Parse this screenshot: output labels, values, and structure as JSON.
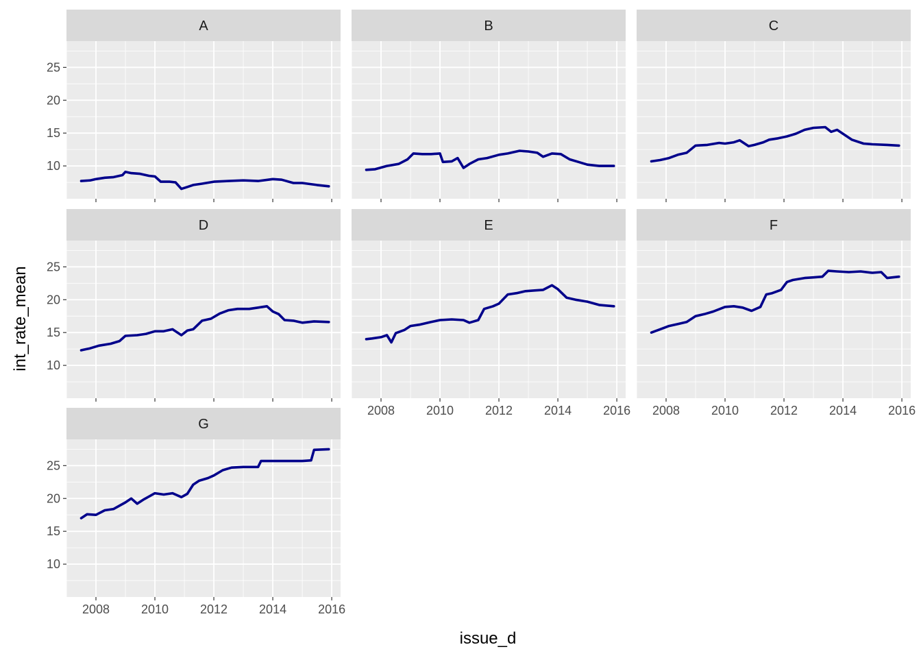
{
  "chart_data": {
    "type": "line",
    "facet_by": "grade",
    "xlabel": "issue_d",
    "ylabel": "int_rate_mean",
    "xlim": [
      2007.0,
      2016.3
    ],
    "ylim": [
      5,
      29
    ],
    "x_ticks": [
      2008,
      2010,
      2012,
      2014,
      2016
    ],
    "x_tick_labels": [
      "2008",
      "2010",
      "2012",
      "2014",
      "2016"
    ],
    "y_ticks": [
      10,
      15,
      20,
      25
    ],
    "y_tick_labels": [
      "10",
      "15",
      "20",
      "25"
    ],
    "grid": true,
    "line_color": "#00008B",
    "panel_background": "#EBEBEB",
    "strip_background": "#D9D9D9",
    "panels": [
      {
        "name": "A",
        "x": [
          2007.5,
          2007.8,
          2008.0,
          2008.3,
          2008.6,
          2008.9,
          2009.0,
          2009.2,
          2009.5,
          2009.8,
          2010.0,
          2010.2,
          2010.5,
          2010.7,
          2010.9,
          2011.1,
          2011.3,
          2011.6,
          2012.0,
          2012.5,
          2013.0,
          2013.5,
          2014.0,
          2014.3,
          2014.7,
          2015.0,
          2015.5,
          2015.9
        ],
        "y": [
          7.7,
          7.8,
          8.0,
          8.2,
          8.3,
          8.6,
          9.1,
          8.9,
          8.8,
          8.5,
          8.4,
          7.6,
          7.6,
          7.5,
          6.5,
          6.8,
          7.1,
          7.3,
          7.6,
          7.7,
          7.8,
          7.7,
          8.0,
          7.9,
          7.4,
          7.4,
          7.1,
          6.9
        ]
      },
      {
        "name": "B",
        "x": [
          2007.5,
          2007.8,
          2008.2,
          2008.6,
          2008.9,
          2009.1,
          2009.4,
          2009.7,
          2010.0,
          2010.1,
          2010.4,
          2010.6,
          2010.8,
          2011.0,
          2011.3,
          2011.6,
          2012.0,
          2012.3,
          2012.7,
          2013.0,
          2013.3,
          2013.5,
          2013.8,
          2014.1,
          2014.4,
          2014.7,
          2015.0,
          2015.4,
          2015.9
        ],
        "y": [
          9.4,
          9.5,
          10.0,
          10.3,
          11.0,
          11.9,
          11.8,
          11.8,
          11.9,
          10.6,
          10.7,
          11.2,
          9.7,
          10.3,
          11.0,
          11.2,
          11.7,
          11.9,
          12.3,
          12.2,
          12.0,
          11.4,
          11.9,
          11.8,
          11.0,
          10.6,
          10.2,
          10.0,
          10.0
        ]
      },
      {
        "name": "C",
        "x": [
          2007.5,
          2007.8,
          2008.1,
          2008.4,
          2008.7,
          2009.0,
          2009.4,
          2009.8,
          2010.0,
          2010.3,
          2010.5,
          2010.8,
          2011.0,
          2011.3,
          2011.5,
          2011.8,
          2012.1,
          2012.4,
          2012.7,
          2013.0,
          2013.4,
          2013.6,
          2013.8,
          2014.0,
          2014.3,
          2014.7,
          2015.0,
          2015.5,
          2015.9
        ],
        "y": [
          10.7,
          10.9,
          11.2,
          11.7,
          12.0,
          13.1,
          13.2,
          13.5,
          13.4,
          13.6,
          13.9,
          13.0,
          13.2,
          13.6,
          14.0,
          14.2,
          14.5,
          14.9,
          15.5,
          15.8,
          15.9,
          15.2,
          15.5,
          14.9,
          14.0,
          13.4,
          13.3,
          13.2,
          13.1
        ]
      },
      {
        "name": "D",
        "x": [
          2007.5,
          2007.8,
          2008.1,
          2008.5,
          2008.8,
          2009.0,
          2009.4,
          2009.7,
          2010.0,
          2010.3,
          2010.6,
          2010.9,
          2011.1,
          2011.3,
          2011.6,
          2011.9,
          2012.2,
          2012.5,
          2012.8,
          2013.2,
          2013.5,
          2013.8,
          2014.0,
          2014.2,
          2014.4,
          2014.7,
          2015.0,
          2015.4,
          2015.9
        ],
        "y": [
          12.3,
          12.6,
          13.0,
          13.3,
          13.7,
          14.5,
          14.6,
          14.8,
          15.2,
          15.2,
          15.5,
          14.6,
          15.3,
          15.5,
          16.8,
          17.1,
          17.9,
          18.4,
          18.6,
          18.6,
          18.8,
          19.0,
          18.2,
          17.8,
          16.9,
          16.8,
          16.5,
          16.7,
          16.6
        ]
      },
      {
        "name": "E",
        "x": [
          2007.5,
          2007.7,
          2008.0,
          2008.2,
          2008.35,
          2008.5,
          2008.8,
          2009.0,
          2009.3,
          2009.7,
          2010.0,
          2010.4,
          2010.8,
          2011.0,
          2011.3,
          2011.5,
          2011.8,
          2012.0,
          2012.3,
          2012.6,
          2012.9,
          2013.2,
          2013.5,
          2013.8,
          2014.0,
          2014.3,
          2014.6,
          2015.0,
          2015.4,
          2015.9
        ],
        "y": [
          14.0,
          14.1,
          14.3,
          14.6,
          13.5,
          14.9,
          15.4,
          16.0,
          16.2,
          16.6,
          16.9,
          17.0,
          16.9,
          16.5,
          16.9,
          18.6,
          19.0,
          19.4,
          20.8,
          21.0,
          21.3,
          21.4,
          21.5,
          22.2,
          21.6,
          20.3,
          20.0,
          19.7,
          19.2,
          19.0
        ]
      },
      {
        "name": "F",
        "x": [
          2007.5,
          2007.8,
          2008.1,
          2008.4,
          2008.7,
          2009.0,
          2009.3,
          2009.6,
          2010.0,
          2010.3,
          2010.6,
          2010.9,
          2011.2,
          2011.4,
          2011.6,
          2011.9,
          2012.1,
          2012.3,
          2012.7,
          2013.0,
          2013.3,
          2013.5,
          2013.8,
          2014.2,
          2014.6,
          2015.0,
          2015.3,
          2015.5,
          2015.9
        ],
        "y": [
          15.0,
          15.5,
          16.0,
          16.3,
          16.6,
          17.5,
          17.8,
          18.2,
          18.9,
          19.0,
          18.8,
          18.3,
          18.9,
          20.8,
          21.0,
          21.5,
          22.7,
          23.0,
          23.3,
          23.4,
          23.5,
          24.4,
          24.3,
          24.2,
          24.3,
          24.1,
          24.2,
          23.3,
          23.5
        ]
      },
      {
        "name": "G",
        "x": [
          2007.5,
          2007.7,
          2008.0,
          2008.3,
          2008.6,
          2009.0,
          2009.2,
          2009.4,
          2009.6,
          2009.8,
          2010.0,
          2010.3,
          2010.6,
          2010.9,
          2011.1,
          2011.3,
          2011.5,
          2011.8,
          2012.0,
          2012.3,
          2012.6,
          2013.0,
          2013.5,
          2013.6,
          2014.0,
          2014.5,
          2015.0,
          2015.3,
          2015.4,
          2015.9
        ],
        "y": [
          17.0,
          17.6,
          17.5,
          18.2,
          18.4,
          19.4,
          20.0,
          19.2,
          19.8,
          20.3,
          20.8,
          20.6,
          20.8,
          20.2,
          20.7,
          22.1,
          22.7,
          23.1,
          23.5,
          24.3,
          24.7,
          24.8,
          24.8,
          25.7,
          25.7,
          25.7,
          25.7,
          25.8,
          27.4,
          27.5
        ]
      }
    ]
  }
}
